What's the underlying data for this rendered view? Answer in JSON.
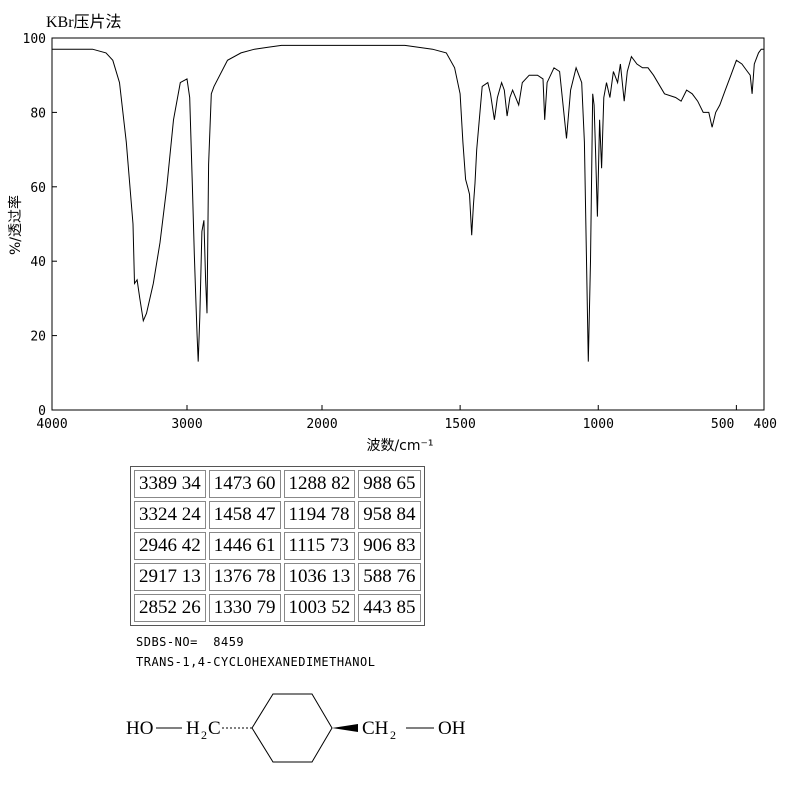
{
  "chart_data": {
    "type": "line",
    "title": "KBr压片法",
    "xlabel": "波数/cm⁻¹",
    "ylabel": "%/透过率",
    "xlim": [
      4000,
      400
    ],
    "ylim": [
      0,
      100
    ],
    "x_ticks": [
      "4000",
      "3000",
      "2000",
      "1500",
      "1000",
      "500",
      "400"
    ],
    "y_ticks": [
      "0",
      "20",
      "40",
      "60",
      "80",
      "100"
    ],
    "grid": false,
    "legend": "none",
    "line_color": "#000000",
    "series": [
      {
        "x": [
          4000,
          3900,
          3800,
          3700,
          3600,
          3550,
          3500,
          3450,
          3400,
          3389,
          3370,
          3350,
          3324,
          3300,
          3250,
          3200,
          3150,
          3100,
          3050,
          3000,
          2980,
          2960,
          2946,
          2935,
          2925,
          2917,
          2905,
          2890,
          2875,
          2862,
          2852,
          2840,
          2820,
          2800,
          2700,
          2600,
          2500,
          2400,
          2300,
          2200,
          2000,
          1800,
          1700,
          1600,
          1550,
          1520,
          1500,
          1490,
          1480,
          1473,
          1466,
          1458,
          1452,
          1446,
          1440,
          1420,
          1400,
          1390,
          1376,
          1365,
          1350,
          1340,
          1330,
          1320,
          1310,
          1288,
          1275,
          1250,
          1220,
          1200,
          1194,
          1185,
          1160,
          1140,
          1115,
          1100,
          1080,
          1060,
          1050,
          1036,
          1028,
          1020,
          1015,
          1010,
          1003,
          995,
          988,
          980,
          970,
          958,
          945,
          930,
          920,
          906,
          895,
          880,
          860,
          840,
          820,
          800,
          760,
          720,
          700,
          680,
          660,
          640,
          620,
          600,
          588,
          575,
          560,
          540,
          520,
          500,
          480,
          460,
          450,
          443,
          435,
          420,
          410,
          400
        ],
        "y": [
          97,
          97,
          97,
          97,
          96,
          94,
          88,
          72,
          50,
          34,
          35,
          30,
          24,
          26,
          34,
          45,
          60,
          78,
          88,
          89,
          84,
          60,
          42,
          30,
          20,
          13,
          25,
          48,
          51,
          35,
          26,
          66,
          85,
          87,
          94,
          96,
          97,
          97.5,
          98,
          98,
          98,
          98,
          98,
          97,
          96,
          92,
          85,
          72,
          62,
          60,
          58,
          47,
          55,
          61,
          70,
          87,
          88,
          85,
          78,
          84,
          88,
          86,
          79,
          84,
          86,
          82,
          88,
          90,
          90,
          89,
          78,
          88,
          92,
          91,
          73,
          86,
          92,
          88,
          72,
          13,
          40,
          85,
          82,
          70,
          52,
          78,
          65,
          84,
          88,
          84,
          91,
          88,
          93,
          83,
          91,
          95,
          93,
          92,
          92,
          90,
          85,
          84,
          83,
          86,
          85,
          83,
          80,
          80,
          76,
          80,
          82,
          86,
          90,
          94,
          93,
          91,
          90,
          85,
          93,
          96,
          97,
          97
        ]
      }
    ]
  },
  "peak_table": [
    [
      "3389 34",
      "1473 60",
      "1288 82",
      "988 65"
    ],
    [
      "3324 24",
      "1458 47",
      "1194 78",
      "958 84"
    ],
    [
      "2946 42",
      "1446 61",
      "1115 73",
      "906 83"
    ],
    [
      "2917 13",
      "1376 78",
      "1036 13",
      "588 76"
    ],
    [
      "2852 26",
      "1330 79",
      "1003 52",
      "443 85"
    ]
  ],
  "sdbs_no_label": "SDBS-NO=  8459",
  "compound_name": "TRANS-1,4-CYCLOHEXANEDIMETHANOL",
  "structure": {
    "ho_left": "HO",
    "h2c_h": "H",
    "h2c_sub": "2",
    "h2c_c": "C",
    "ch2_ch": "CH",
    "ch2_sub": "2",
    "oh_right": "OH"
  }
}
